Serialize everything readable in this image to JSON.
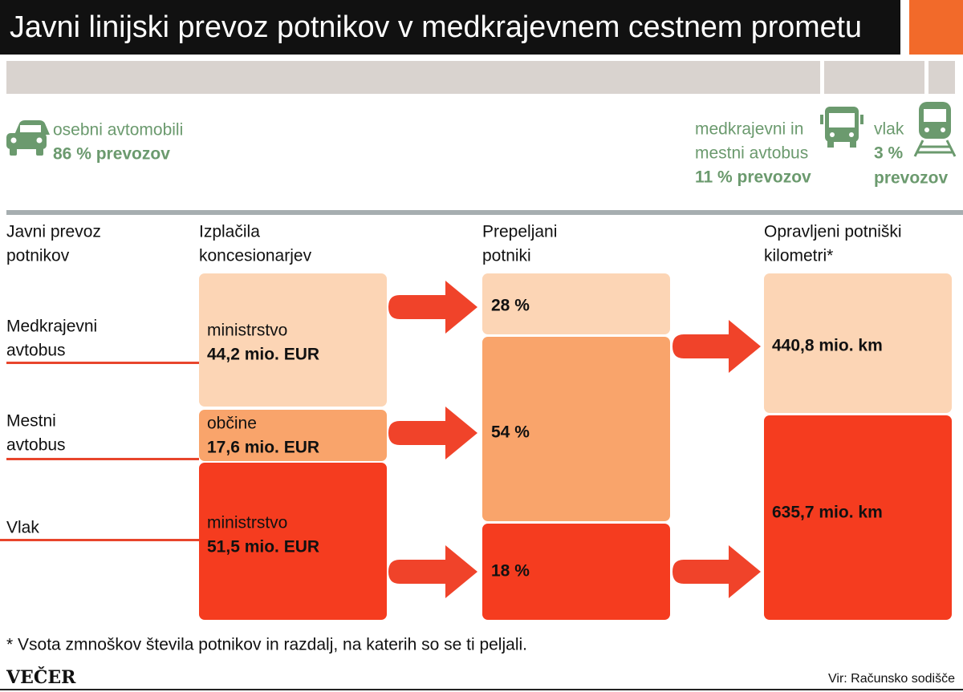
{
  "header": {
    "title": "Javni linijski prevoz potnikov v medkrajevnem cestnem prometu"
  },
  "modes": [
    {
      "label": [
        "osebni avtomobili"
      ],
      "share": [
        "86 % prevozov"
      ]
    },
    {
      "label": [
        "medkrajevni in",
        "mestni avtobus"
      ],
      "share": [
        "11 % prevozov"
      ]
    },
    {
      "label": [
        "vlak"
      ],
      "share": [
        "3 %",
        "prevozov"
      ]
    }
  ],
  "columns": [
    [
      "Javni prevoz",
      "potnikov"
    ],
    [
      "Izplačila",
      "koncesionarjev"
    ],
    [
      "Prepeljani",
      "potniki"
    ],
    [
      "Opravljeni potniški",
      "kilometri*"
    ]
  ],
  "rows": [
    [
      "Medkrajevni",
      "avtobus"
    ],
    [
      "Mestni",
      "avtobus"
    ],
    [
      "Vlak"
    ]
  ],
  "payments": [
    {
      "payer": "ministrstvo",
      "amount": "44,2 mio. EUR"
    },
    {
      "payer": "občine",
      "amount": "17,6 mio. EUR"
    },
    {
      "payer": "ministrstvo",
      "amount": "51,5 mio. EUR"
    }
  ],
  "passengers": [
    "28 %",
    "54 %",
    "18 %"
  ],
  "kilometers": [
    "440,8 mio. km",
    "635,7 mio. km"
  ],
  "footnote": "* Vsota zmnoškov števila potnikov in razdalj, na katerih so se ti peljali.",
  "brand": "VEČER",
  "source": "Vir: Računsko sodišče"
}
